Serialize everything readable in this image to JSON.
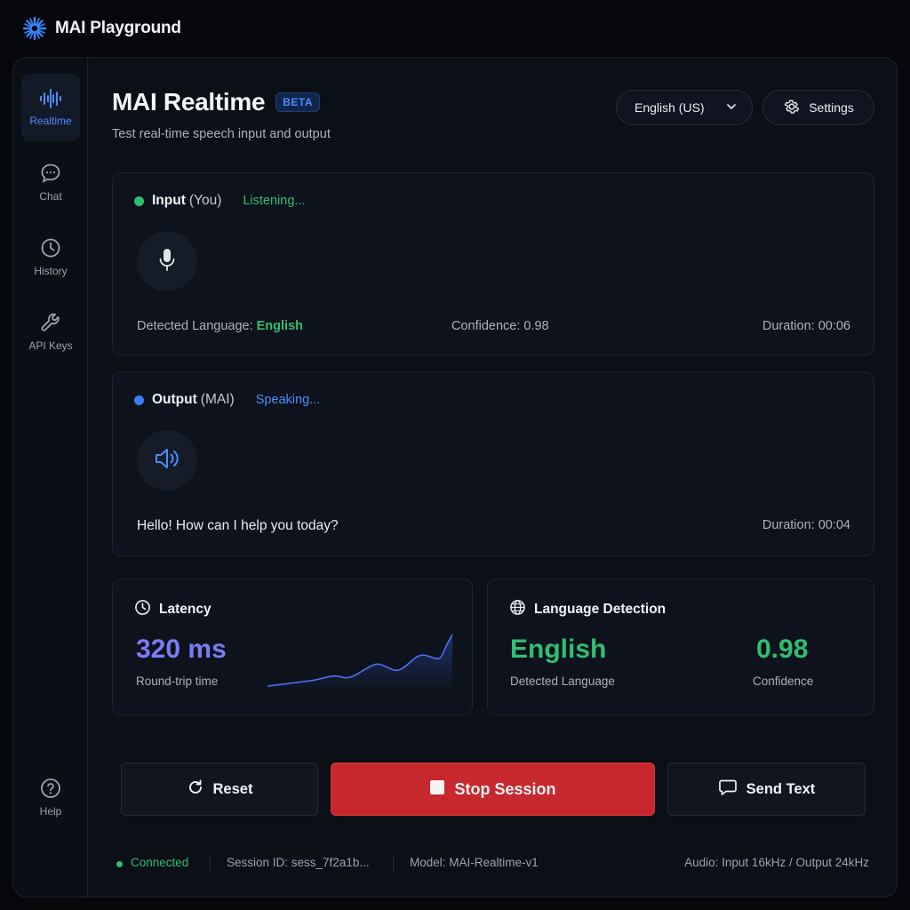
{
  "app": {
    "brand": "MAI Playground"
  },
  "sidebar": {
    "items": [
      {
        "label": "Realtime",
        "icon": "waveform-icon",
        "active": true
      },
      {
        "label": "Chat",
        "icon": "chat-bubble-icon"
      },
      {
        "label": "History",
        "icon": "clock-history-icon"
      },
      {
        "label": "API Keys",
        "icon": "wrench-icon"
      }
    ],
    "help_label": "Help"
  },
  "header": {
    "title": "MAI Realtime",
    "badge": "BETA",
    "subtitle": "Test real-time speech input and output",
    "language_select": {
      "value": "English (US)"
    },
    "settings_label": "Settings"
  },
  "input_panel": {
    "label": "Input",
    "label_sub": "(You)",
    "status": "Listening...",
    "detected_language_label": "Detected Language:",
    "detected_language": "English",
    "confidence_text": "Confidence: 0.98",
    "duration_text": "Duration: 00:06"
  },
  "output_panel": {
    "label": "Output",
    "label_sub": "(MAI)",
    "status": "Speaking...",
    "transcript": "Hello! How can I help you today?",
    "duration_text": "Duration: 00:04"
  },
  "latency_card": {
    "title": "Latency",
    "value": "320 ms",
    "caption": "Round-trip time"
  },
  "language_card": {
    "title": "Language Detection",
    "language": "English",
    "language_caption": "Detected Language",
    "confidence": "0.98",
    "confidence_caption": "Confidence"
  },
  "actions": {
    "reset": "Reset",
    "stop": "Stop Session",
    "send_text": "Send Text"
  },
  "footer": {
    "connection": "Connected",
    "session": "Session ID: sess_7f2a1b...",
    "model": "Model: MAI-Realtime-v1",
    "audio": "Audio: Input 16kHz / Output 24kHz"
  },
  "colors": {
    "accent_blue": "#4a8dff",
    "green": "#2fbf71",
    "latency_purple": "#7b7cf5",
    "stop_red": "#c7282d"
  }
}
